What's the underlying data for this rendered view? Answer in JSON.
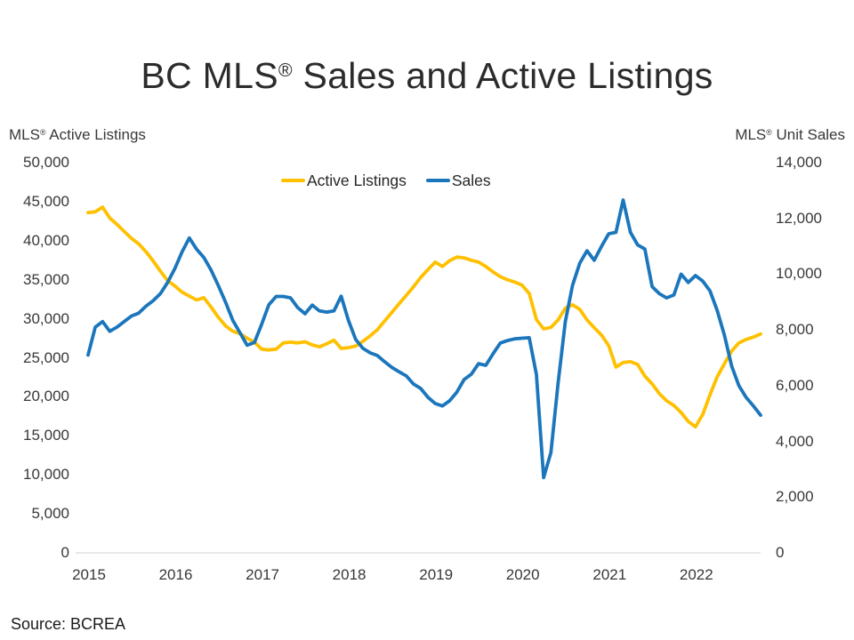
{
  "page": {
    "title": "BC MLS® Sales and Active Listings",
    "source": "Source: BCREA"
  },
  "colors": {
    "active_listings": "#FFC000",
    "sales": "#1B76BC",
    "axis_line": "#D9D9D9",
    "text": "#383838"
  },
  "chart_data": {
    "type": "line",
    "title": "BC MLS® Sales and Active Listings",
    "x_start": "2015-01",
    "x_end": "2022-10",
    "x_interval": "monthly",
    "x_tick_labels": [
      "2015",
      "2016",
      "2017",
      "2018",
      "2019",
      "2020",
      "2021",
      "2022"
    ],
    "grid": false,
    "legend_position": "top-center",
    "left_axis": {
      "title": "MLS® Active Listings",
      "range": [
        0,
        50000
      ],
      "ticks": [
        "50,000",
        "45,000",
        "40,000",
        "35,000",
        "30,000",
        "25,000",
        "20,000",
        "15,000",
        "10,000",
        "5,000",
        "0"
      ]
    },
    "right_axis": {
      "title": "MLS® Unit Sales",
      "range": [
        0,
        14000
      ],
      "ticks": [
        "14,000",
        "12,000",
        "10,000",
        "8,000",
        "6,000",
        "4,000",
        "2,000",
        "0"
      ]
    },
    "series": [
      {
        "name": "Active Listings",
        "axis": "left",
        "color": "#FFC000",
        "values": [
          43600,
          43700,
          44300,
          42900,
          42100,
          41200,
          40300,
          39600,
          38600,
          37400,
          36100,
          34900,
          34200,
          33400,
          32900,
          32400,
          32700,
          31500,
          30200,
          29100,
          28400,
          28100,
          27500,
          27000,
          26100,
          26000,
          26100,
          26900,
          27000,
          26900,
          27050,
          26650,
          26400,
          26800,
          27250,
          26200,
          26300,
          26500,
          27100,
          27800,
          28600,
          29700,
          30800,
          31900,
          33000,
          34100,
          35300,
          36300,
          37250,
          36700,
          37450,
          37900,
          37800,
          37500,
          37250,
          36700,
          36000,
          35400,
          35000,
          34700,
          34300,
          33250,
          29900,
          28700,
          28900,
          29850,
          31350,
          31800,
          31200,
          29850,
          28850,
          27900,
          26550,
          23800,
          24400,
          24500,
          24150,
          22650,
          21650,
          20400,
          19500,
          18900,
          18000,
          16850,
          16150,
          17750,
          20250,
          22550,
          24250,
          25850,
          26900,
          27350,
          27650,
          28050
        ]
      },
      {
        "name": "Sales",
        "axis": "right",
        "color": "#1B76BC",
        "values": [
          7100,
          8100,
          8300,
          7950,
          8100,
          8300,
          8500,
          8600,
          8850,
          9050,
          9300,
          9700,
          10200,
          10800,
          11300,
          10900,
          10600,
          10150,
          9600,
          9000,
          8350,
          7900,
          7450,
          7550,
          8200,
          8900,
          9200,
          9200,
          9150,
          8800,
          8580,
          8890,
          8680,
          8640,
          8680,
          9210,
          8350,
          7660,
          7340,
          7180,
          7080,
          6860,
          6660,
          6500,
          6350,
          6060,
          5900,
          5580,
          5360,
          5270,
          5460,
          5770,
          6220,
          6410,
          6790,
          6730,
          7140,
          7530,
          7620,
          7680,
          7700,
          7720,
          6400,
          2700,
          3600,
          6100,
          8300,
          9600,
          10400,
          10840,
          10500,
          11000,
          11450,
          11500,
          12660,
          11500,
          11050,
          10900,
          9550,
          9300,
          9150,
          9250,
          10000,
          9700,
          9950,
          9750,
          9400,
          8700,
          7800,
          6700,
          6000,
          5580,
          5270,
          4940
        ]
      }
    ]
  }
}
